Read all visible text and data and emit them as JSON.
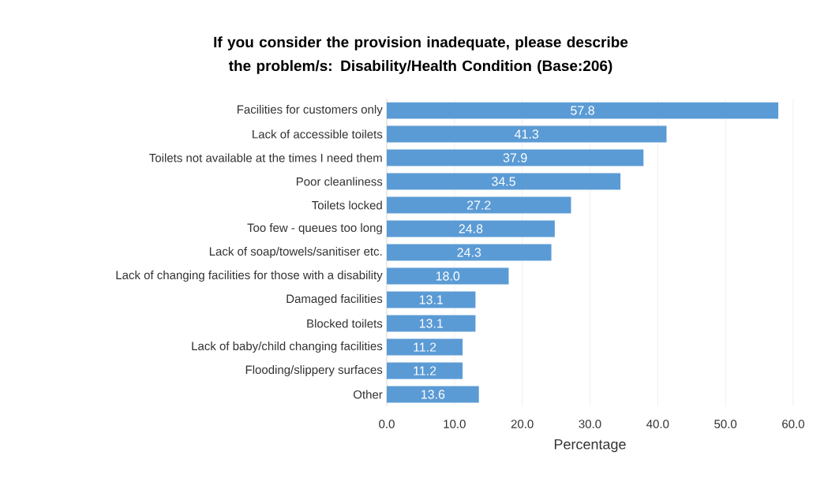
{
  "chart_data": {
    "type": "bar",
    "orientation": "horizontal",
    "title": "If you consider the provision inadequate, please describe the problem/s: Disability/Health Condition (Base:206)",
    "xlabel": "Percentage",
    "categories": [
      "Facilities for customers only",
      "Lack of accessible toilets",
      "Toilets not available at the times I need them",
      "Poor cleanliness",
      "Toilets locked",
      "Too few - queues too long",
      "Lack of soap/towels/sanitiser etc.",
      "Lack of changing facilities for those with a disability",
      "Damaged facilities",
      "Blocked toilets",
      "Lack of baby/child changing facilities",
      "Flooding/slippery surfaces",
      "Other"
    ],
    "values": [
      57.8,
      41.3,
      37.9,
      34.5,
      27.2,
      24.8,
      24.3,
      18.0,
      13.1,
      13.1,
      11.2,
      11.2,
      13.6
    ],
    "value_labels": [
      "57.8",
      "41.3",
      "37.9",
      "34.5",
      "27.2",
      "24.8",
      "24.3",
      "18.0",
      "13.1",
      "13.1",
      "11.2",
      "11.2",
      "13.6"
    ],
    "color": "#5b9bd5",
    "xlim": [
      0,
      60
    ],
    "xticks": [
      {
        "value": 0,
        "label": "0.0"
      },
      {
        "value": 10,
        "label": "10.0"
      },
      {
        "value": 20,
        "label": "20.0"
      },
      {
        "value": 30,
        "label": "30.0"
      },
      {
        "value": 40,
        "label": "40.0"
      },
      {
        "value": 50,
        "label": "50.0"
      },
      {
        "value": 60,
        "label": "60.0"
      }
    ],
    "grid": "x"
  }
}
